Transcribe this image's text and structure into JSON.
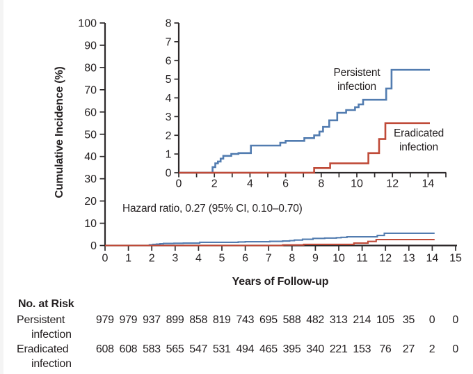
{
  "chart_data": {
    "type": "line",
    "step": true,
    "main_axes": {
      "xlabel": "Years of Follow-up",
      "ylabel": "Cumulative Incidence (%)",
      "xlim": [
        0,
        15
      ],
      "ylim": [
        0,
        100
      ],
      "xticks": [
        0,
        1,
        2,
        3,
        4,
        5,
        6,
        7,
        8,
        9,
        10,
        11,
        12,
        13,
        14,
        15
      ],
      "yticks": [
        0,
        10,
        20,
        30,
        40,
        50,
        60,
        70,
        80,
        90,
        100
      ],
      "grid": false,
      "legend": "none"
    },
    "inset_axes": {
      "xlim": [
        0,
        15
      ],
      "ylim": [
        0,
        8
      ],
      "xticks": [
        0,
        1,
        2,
        3,
        4,
        5,
        6,
        7,
        8,
        9,
        10,
        11,
        12,
        13,
        14,
        15
      ],
      "xtick_labels": [
        0,
        2,
        4,
        6,
        8,
        10,
        12,
        14
      ],
      "yticks": [
        0,
        1,
        2,
        3,
        4,
        5,
        6,
        7,
        8
      ],
      "grid": false
    },
    "annotation": "Hazard ratio, 0.27 (95% CI, 0.10–0.70)",
    "series": [
      {
        "name": "Persistent infection",
        "label_lines": [
          "Persistent",
          "infection"
        ],
        "color": "#527cb0",
        "points": [
          [
            0,
            0
          ],
          [
            1.9,
            0.3
          ],
          [
            2.05,
            0.5
          ],
          [
            2.2,
            0.6
          ],
          [
            2.35,
            0.75
          ],
          [
            2.5,
            0.9
          ],
          [
            2.95,
            1.0
          ],
          [
            3.35,
            1.05
          ],
          [
            4.05,
            1.45
          ],
          [
            5.7,
            1.6
          ],
          [
            6.0,
            1.7
          ],
          [
            7.05,
            1.85
          ],
          [
            7.6,
            2.0
          ],
          [
            7.9,
            2.2
          ],
          [
            8.1,
            2.45
          ],
          [
            8.45,
            2.8
          ],
          [
            8.9,
            3.2
          ],
          [
            9.4,
            3.35
          ],
          [
            9.9,
            3.5
          ],
          [
            10.1,
            3.65
          ],
          [
            10.35,
            3.9
          ],
          [
            11.65,
            4.5
          ],
          [
            11.95,
            5.5
          ],
          [
            14.1,
            5.5
          ]
        ]
      },
      {
        "name": "Eradicated infection",
        "label_lines": [
          "Eradicated",
          "infection"
        ],
        "color": "#bf4a38",
        "points": [
          [
            0,
            0
          ],
          [
            7.6,
            0.25
          ],
          [
            8.5,
            0.5
          ],
          [
            10.65,
            1.05
          ],
          [
            11.25,
            1.8
          ],
          [
            11.6,
            2.65
          ],
          [
            14.1,
            2.65
          ]
        ]
      }
    ]
  },
  "risk_table": {
    "heading": "No. at Risk",
    "rows": [
      {
        "label_lines": [
          "Persistent",
          "infection"
        ],
        "values": [
          "979",
          "979",
          "937",
          "899",
          "858",
          "819",
          "743",
          "695",
          "588",
          "482",
          "313",
          "214",
          "105",
          "35",
          "0",
          "0"
        ]
      },
      {
        "label_lines": [
          "Eradicated",
          "infection"
        ],
        "values": [
          "608",
          "608",
          "583",
          "565",
          "547",
          "531",
          "494",
          "465",
          "395",
          "340",
          "221",
          "153",
          "76",
          "27",
          "2",
          "0"
        ]
      }
    ]
  },
  "colors": {
    "blue": "#527cb0",
    "red": "#bf4a38",
    "axis": "#2d292a",
    "text": "#231f20"
  }
}
